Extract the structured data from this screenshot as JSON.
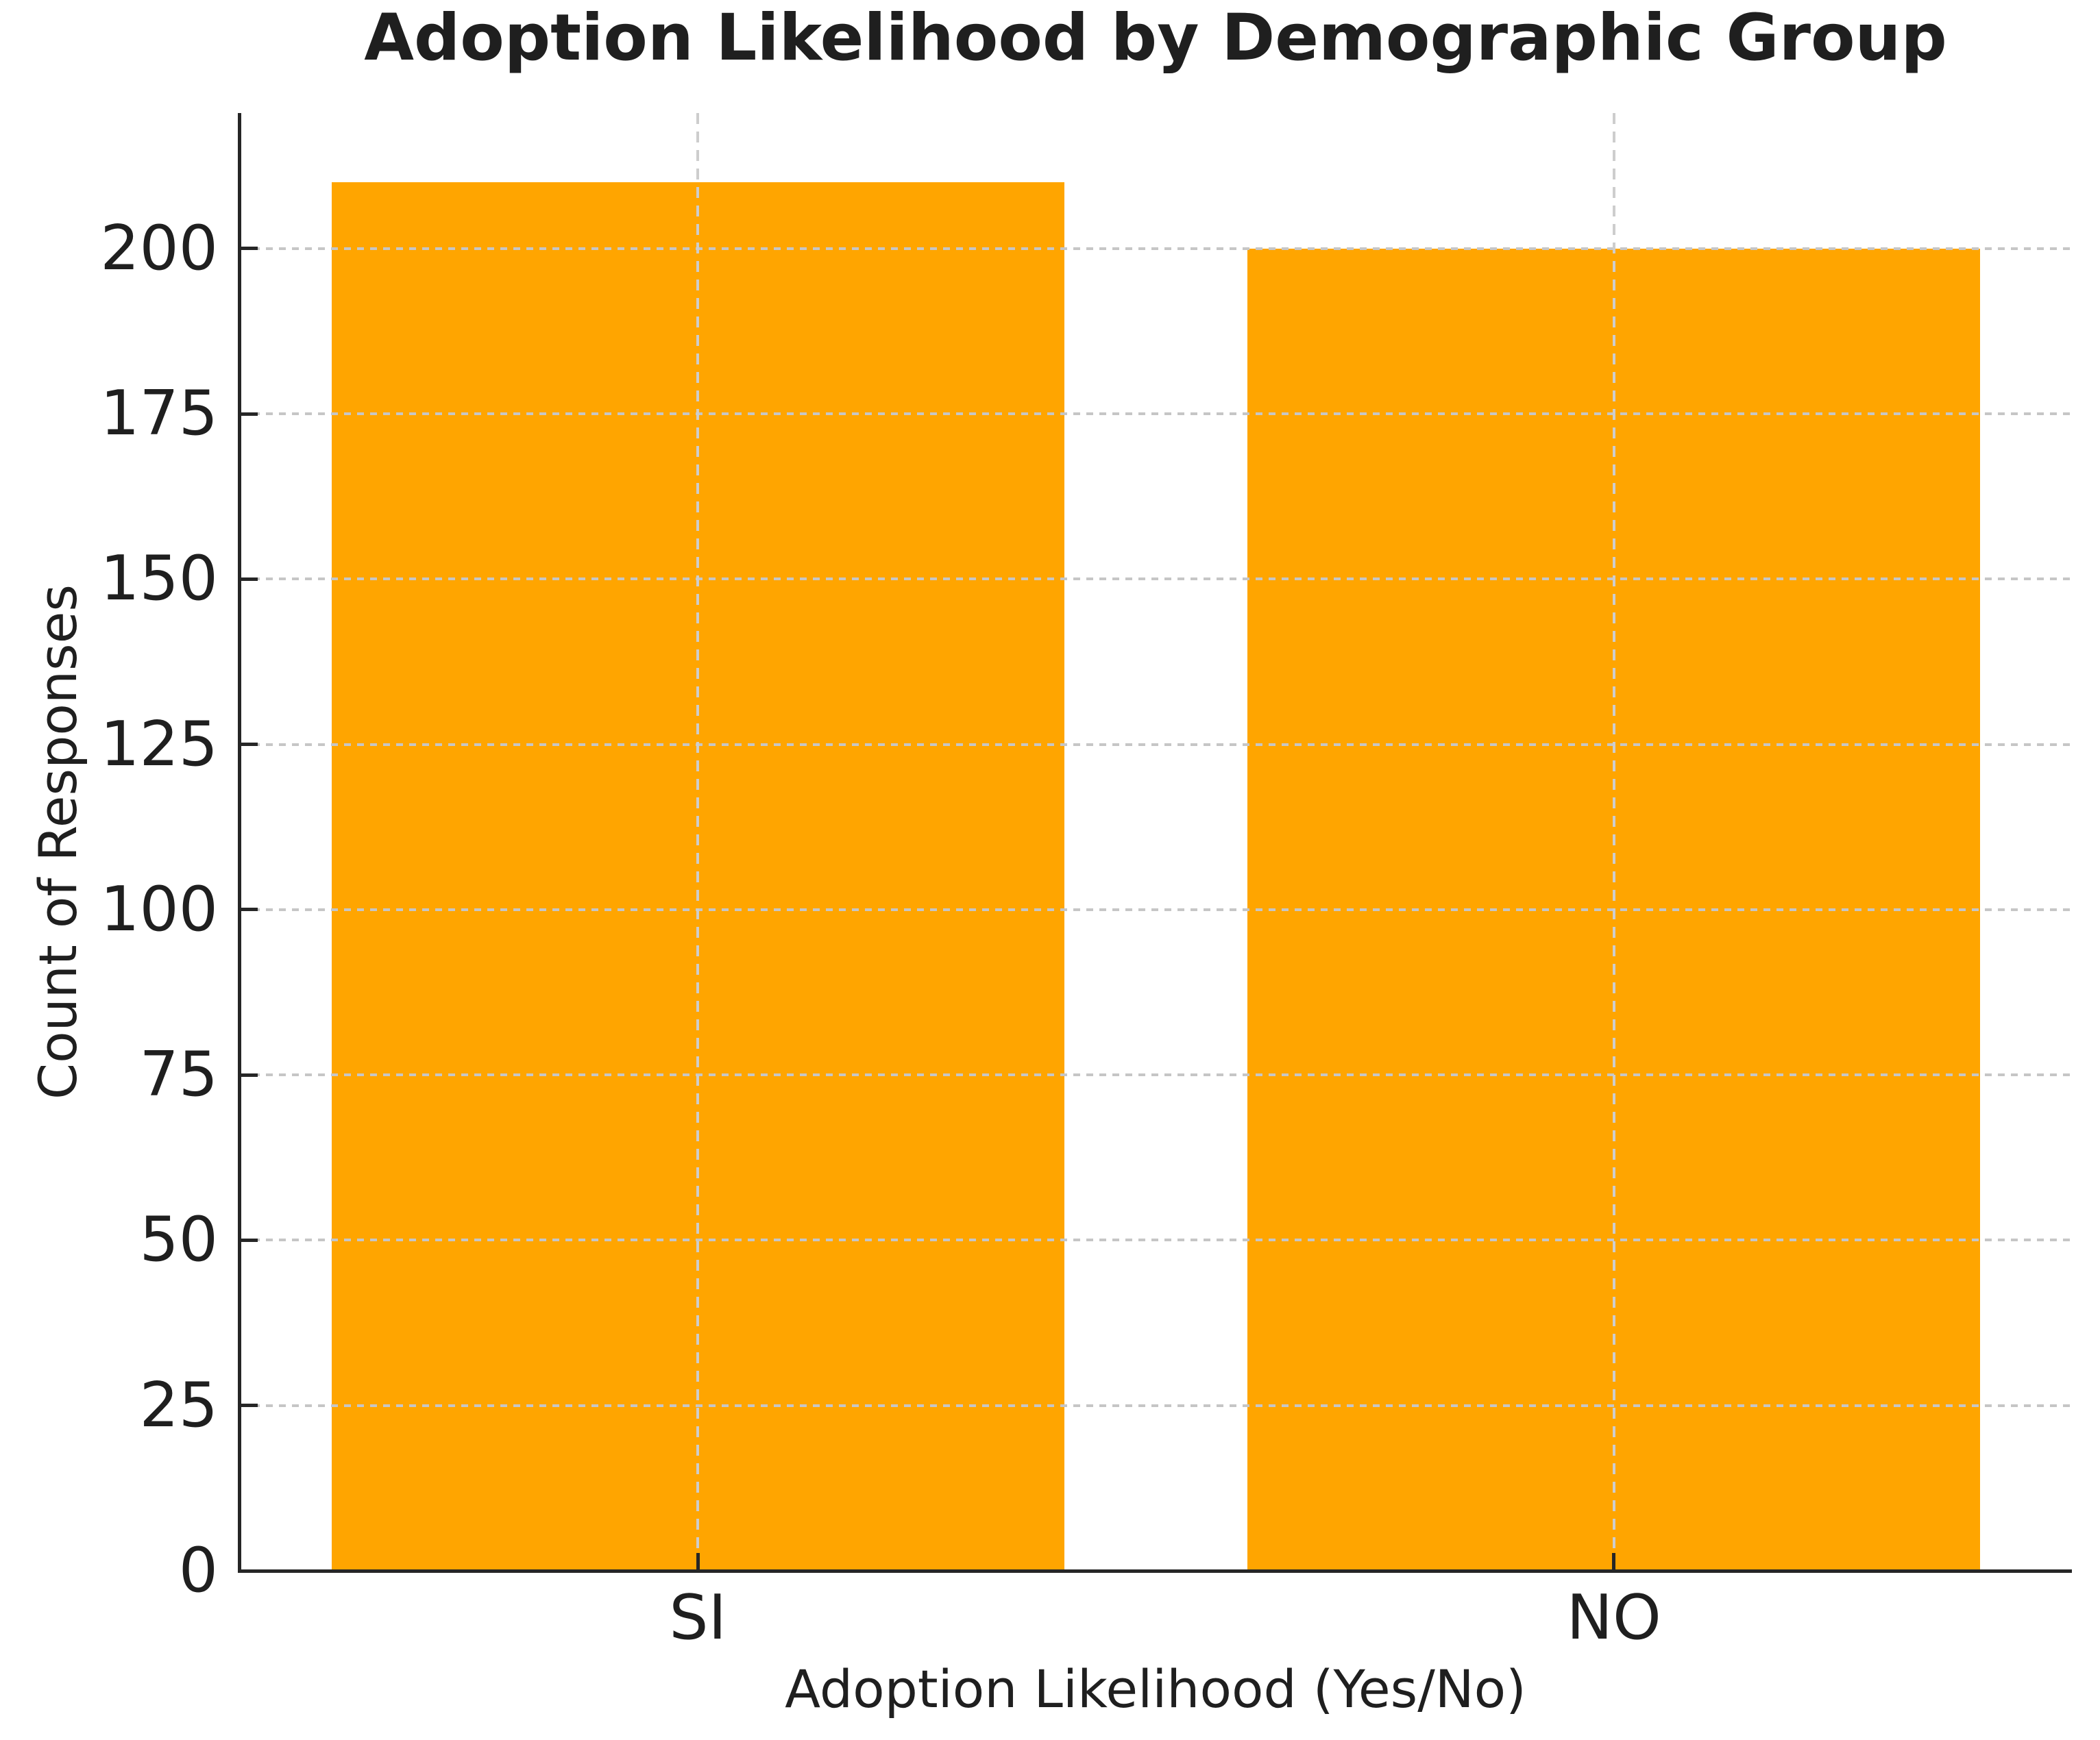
{
  "chart_data": {
    "type": "bar",
    "title": "Adoption Likelihood by Demographic Group",
    "xlabel": "Adoption Likelihood (Yes/No)",
    "ylabel": "Count of Responses",
    "categories": [
      "SI",
      "NO"
    ],
    "values": [
      210,
      200
    ],
    "yticks": [
      0,
      25,
      50,
      75,
      100,
      125,
      150,
      175,
      200
    ],
    "ylim": [
      0,
      220.5
    ],
    "grid": true,
    "grid_style": "dashed",
    "legend": "none",
    "bar_color": "#FFA500",
    "grid_color": "#c6c6c6",
    "spine_color": "#262626",
    "text_color": "#1f1f1f",
    "background_color": "#ffffff"
  }
}
